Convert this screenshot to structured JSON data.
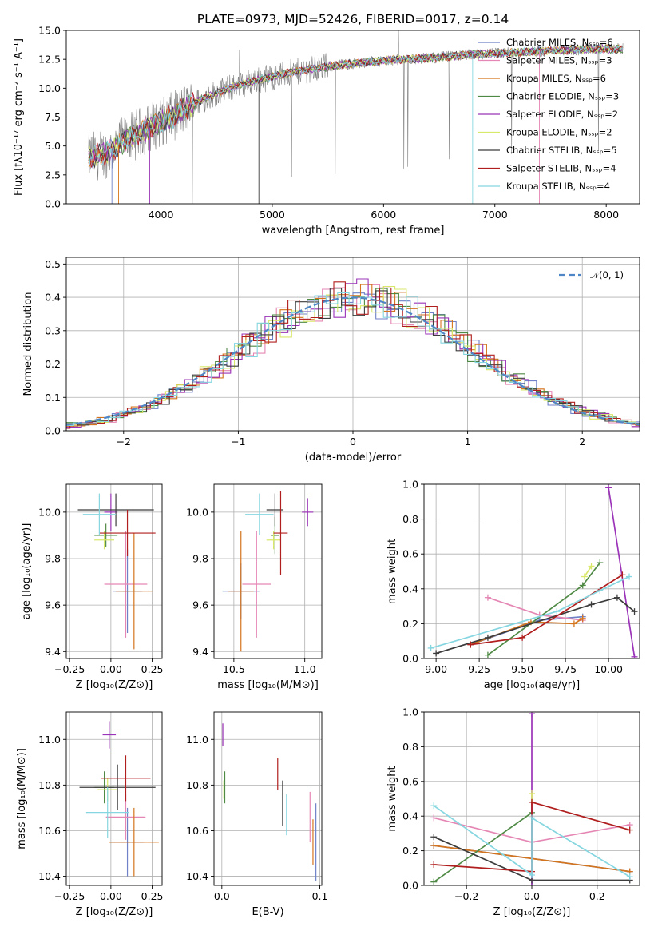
{
  "title": "PLATE=0973, MJD=52426, FIBERID=0017, z=0.14",
  "colors": {
    "series": [
      "#6f82c8",
      "#e587b4",
      "#d4741c",
      "#4f8a45",
      "#9b34b8",
      "#d9e86b",
      "#3c3c3c",
      "#b01e1e",
      "#85d6e0"
    ],
    "spectrum": "#808080",
    "gaussian": "#4f86c6",
    "grid": "#b0b0b0"
  },
  "chart_data": [
    {
      "name": "spectrum",
      "type": "line",
      "xlabel": "wavelength [Angstrom, rest frame]",
      "ylabel": "Flux [fλ10⁻¹⁷ erg cm⁻² s⁻¹ A⁻¹]",
      "xlim": [
        3150,
        8300
      ],
      "ylim": [
        0,
        15
      ],
      "xticks": [
        "4000",
        "5000",
        "6000",
        "7000",
        "8000"
      ],
      "yticks": [
        "0.0",
        "2.5",
        "5.0",
        "7.5",
        "10.0",
        "12.5",
        "15.0"
      ],
      "grid": false,
      "legend_position": "top-right",
      "series": [
        {
          "name": "Chabrier MILES, Nₛₛₚ=6"
        },
        {
          "name": "Salpeter MILES, Nₛₛₚ=3"
        },
        {
          "name": "Kroupa MILES, Nₛₛₚ=6"
        },
        {
          "name": "Chabrier ELODIE, Nₛₛₚ=3"
        },
        {
          "name": "Salpeter ELODIE, Nₛₛₚ=2"
        },
        {
          "name": "Kroupa ELODIE, Nₛₛₚ=2"
        },
        {
          "name": "Chabrier STELIB, Nₛₛₚ=5"
        },
        {
          "name": "Salpeter STELIB, Nₛₛₚ=4"
        },
        {
          "name": "Kroupa STELIB, Nₛₛₚ=4"
        }
      ],
      "continuum": [
        [
          3350,
          4.1
        ],
        [
          3500,
          4.3
        ],
        [
          3700,
          5.6
        ],
        [
          3900,
          6.6
        ],
        [
          4100,
          7.5
        ],
        [
          4300,
          8.7
        ],
        [
          4500,
          9.6
        ],
        [
          4700,
          10.3
        ],
        [
          5000,
          11.0
        ],
        [
          5300,
          11.6
        ],
        [
          5600,
          12.0
        ],
        [
          6000,
          12.4
        ],
        [
          6400,
          12.6
        ],
        [
          6800,
          12.9
        ],
        [
          7200,
          13.1
        ],
        [
          7600,
          13.3
        ],
        [
          8000,
          13.4
        ],
        [
          8150,
          13.4
        ]
      ]
    },
    {
      "name": "residuals",
      "type": "line",
      "xlabel": "(data-model)/error",
      "ylabel": "Normed distribution",
      "xlim": [
        -2.5,
        2.5
      ],
      "ylim": [
        0,
        0.52
      ],
      "xticks": [
        "−2",
        "−1",
        "0",
        "1",
        "2"
      ],
      "yticks": [
        "0.0",
        "0.1",
        "0.2",
        "0.3",
        "0.4",
        "0.5"
      ],
      "grid": true,
      "legend": "𝒩(0, 1)",
      "legend_position": "top-right",
      "gaussian": {
        "mean": 0,
        "sigma": 1
      }
    },
    {
      "name": "Z vs age",
      "type": "scatter",
      "xlabel": "Z [log₁₀(Z/Z⊙)]",
      "ylabel": "age  [log₁₀(age/yr)]",
      "xlim": [
        -0.27,
        0.31
      ],
      "ylim": [
        9.37,
        10.12
      ],
      "xticks": [
        "−0.25",
        "0.00",
        "0.25"
      ],
      "yticks": [
        "9.4",
        "9.6",
        "9.8",
        "10.0"
      ],
      "grid": true,
      "points": [
        {
          "s": 0,
          "x": 0.1,
          "y": 9.66,
          "ex": 0.09,
          "ey": 0.18
        },
        {
          "s": 1,
          "x": 0.09,
          "y": 9.69,
          "ex": 0.13,
          "ey": 0.23
        },
        {
          "s": 2,
          "x": 0.14,
          "y": 9.66,
          "ex": 0.11,
          "ey": 0.25
        },
        {
          "s": 3,
          "x": -0.03,
          "y": 9.9,
          "ex": 0.07,
          "ey": 0.05
        },
        {
          "s": 4,
          "x": 0.0,
          "y": 10.0,
          "ex": 0.04,
          "ey": 0.08
        },
        {
          "s": 5,
          "x": -0.04,
          "y": 9.88,
          "ex": 0.06,
          "ey": 0.04
        },
        {
          "s": 6,
          "x": 0.03,
          "y": 10.01,
          "ex": 0.23,
          "ey": 0.07
        },
        {
          "s": 7,
          "x": 0.1,
          "y": 9.91,
          "ex": 0.17,
          "ey": 0.1
        },
        {
          "s": 8,
          "x": -0.07,
          "y": 9.99,
          "ex": 0.1,
          "ey": 0.09
        }
      ]
    },
    {
      "name": "mass vs age",
      "type": "scatter",
      "xlabel": "mass [log₁₀(M/M⊙)]",
      "ylabel": "",
      "xlim": [
        10.36,
        11.12
      ],
      "ylim": [
        9.37,
        10.12
      ],
      "xticks": [
        "10.5",
        "11.0"
      ],
      "yticks": [
        "9.4",
        "9.6",
        "9.8",
        "10.0"
      ],
      "grid": true,
      "points": [
        {
          "s": 0,
          "x": 10.55,
          "y": 9.66,
          "ex": 0.13,
          "ey": 0.12
        },
        {
          "s": 1,
          "x": 10.66,
          "y": 9.69,
          "ex": 0.1,
          "ey": 0.23
        },
        {
          "s": 2,
          "x": 10.55,
          "y": 9.66,
          "ex": 0.09,
          "ey": 0.26
        },
        {
          "s": 3,
          "x": 10.79,
          "y": 9.9,
          "ex": 0.03,
          "ey": 0.08
        },
        {
          "s": 4,
          "x": 11.02,
          "y": 10.0,
          "ex": 0.04,
          "ey": 0.06
        },
        {
          "s": 5,
          "x": 10.78,
          "y": 9.88,
          "ex": 0.05,
          "ey": 0.04
        },
        {
          "s": 6,
          "x": 10.79,
          "y": 10.01,
          "ex": 0.06,
          "ey": 0.07
        },
        {
          "s": 7,
          "x": 10.83,
          "y": 9.91,
          "ex": 0.05,
          "ey": 0.18
        },
        {
          "s": 8,
          "x": 10.68,
          "y": 9.99,
          "ex": 0.1,
          "ey": 0.09
        }
      ]
    },
    {
      "name": "age vs mass weight",
      "type": "line",
      "xlabel": "age  [log₁₀(age/yr)]",
      "ylabel": "mass weight",
      "xlim": [
        8.93,
        10.18
      ],
      "ylim": [
        0,
        1.0
      ],
      "xticks": [
        "9.00",
        "9.25",
        "9.50",
        "9.75",
        "10.00"
      ],
      "yticks": [
        "0.0",
        "0.2",
        "0.4",
        "0.6",
        "0.8",
        "1.0"
      ],
      "grid": true,
      "series": [
        {
          "s": 0,
          "x": [
            9.2,
            9.6,
            9.85
          ],
          "y": [
            0.08,
            0.22,
            0.24
          ]
        },
        {
          "s": 1,
          "x": [
            9.3,
            9.6,
            9.85
          ],
          "y": [
            0.35,
            0.25,
            0.22
          ]
        },
        {
          "s": 2,
          "x": [
            9.2,
            9.55,
            9.8,
            9.85
          ],
          "y": [
            0.08,
            0.21,
            0.2,
            0.23
          ]
        },
        {
          "s": 3,
          "x": [
            9.3,
            9.85,
            9.95
          ],
          "y": [
            0.02,
            0.42,
            0.55
          ]
        },
        {
          "s": 4,
          "x": [
            10.0,
            10.15
          ],
          "y": [
            0.98,
            0.01
          ]
        },
        {
          "s": 5,
          "x": [
            9.86,
            9.9
          ],
          "y": [
            0.47,
            0.53
          ]
        },
        {
          "s": 6,
          "x": [
            9.0,
            9.3,
            9.9,
            10.05,
            10.15
          ],
          "y": [
            0.03,
            0.12,
            0.31,
            0.35,
            0.27
          ]
        },
        {
          "s": 7,
          "x": [
            9.2,
            9.5,
            10.08
          ],
          "y": [
            0.08,
            0.12,
            0.48
          ]
        },
        {
          "s": 8,
          "x": [
            8.97,
            9.7,
            9.95,
            10.12
          ],
          "y": [
            0.06,
            0.27,
            0.39,
            0.47
          ]
        }
      ]
    },
    {
      "name": "Z vs mass",
      "type": "scatter",
      "xlabel": "Z [log₁₀(Z/Z⊙)]",
      "ylabel": "mass [log₁₀(M/M⊙)]",
      "xlim": [
        -0.27,
        0.31
      ],
      "ylim": [
        10.36,
        11.12
      ],
      "xticks": [
        "−0.25",
        "0.00",
        "0.25"
      ],
      "yticks": [
        "10.4",
        "10.6",
        "10.8",
        "11.0"
      ],
      "grid": true,
      "points": [
        {
          "s": 0,
          "x": 0.1,
          "y": 10.55,
          "ex": 0.1,
          "ey": 0.15
        },
        {
          "s": 1,
          "x": 0.09,
          "y": 10.66,
          "ex": 0.12,
          "ey": 0.1
        },
        {
          "s": 2,
          "x": 0.14,
          "y": 10.55,
          "ex": 0.15,
          "ey": 0.15
        },
        {
          "s": 3,
          "x": -0.04,
          "y": 10.79,
          "ex": 0.06,
          "ey": 0.07
        },
        {
          "s": 4,
          "x": -0.01,
          "y": 11.02,
          "ex": 0.04,
          "ey": 0.06
        },
        {
          "s": 5,
          "x": -0.02,
          "y": 10.78,
          "ex": 0.06,
          "ey": 0.05
        },
        {
          "s": 6,
          "x": 0.04,
          "y": 10.79,
          "ex": 0.23,
          "ey": 0.1
        },
        {
          "s": 7,
          "x": 0.09,
          "y": 10.83,
          "ex": 0.15,
          "ey": 0.1
        },
        {
          "s": 8,
          "x": -0.02,
          "y": 10.68,
          "ex": 0.13,
          "ey": 0.11
        }
      ]
    },
    {
      "name": "E(B-V) vs mass",
      "type": "scatter",
      "xlabel": "E(B-V)",
      "ylabel": "",
      "xlim": [
        -0.008,
        0.102
      ],
      "ylim": [
        10.36,
        11.12
      ],
      "xticks": [
        "0.0",
        "0.1"
      ],
      "yticks": [
        "10.4",
        "10.6",
        "10.8",
        "11.0"
      ],
      "grid": true,
      "points": [
        {
          "s": 0,
          "x": 0.096,
          "y": 10.55,
          "ey": 0.17
        },
        {
          "s": 1,
          "x": 0.09,
          "y": 10.66,
          "ey": 0.11
        },
        {
          "s": 2,
          "x": 0.093,
          "y": 10.55,
          "ey": 0.1
        },
        {
          "s": 3,
          "x": 0.003,
          "y": 10.79,
          "ey": 0.07
        },
        {
          "s": 4,
          "x": 0.001,
          "y": 11.02,
          "ey": 0.05
        },
        {
          "s": 5,
          "x": 0.002,
          "y": 10.78,
          "ey": 0.04
        },
        {
          "s": 6,
          "x": 0.062,
          "y": 10.72,
          "ey": 0.1
        },
        {
          "s": 7,
          "x": 0.057,
          "y": 10.85,
          "ey": 0.07
        },
        {
          "s": 8,
          "x": 0.066,
          "y": 10.67,
          "ey": 0.09
        }
      ]
    },
    {
      "name": "Z vs mass weight",
      "type": "line",
      "xlabel": "Z [log₁₀(Z/Z⊙)]",
      "ylabel": "mass weight",
      "xlim": [
        -0.33,
        0.33
      ],
      "ylim": [
        0,
        1.0
      ],
      "xticks": [
        "−0.2",
        "0.0",
        "0.2"
      ],
      "yticks": [
        "0.0",
        "0.2",
        "0.4",
        "0.6",
        "0.8",
        "1.0"
      ],
      "grid": true,
      "series": [
        {
          "s": 0,
          "x": [
            -0.3,
            0.3
          ],
          "y": [
            0.23,
            0.08
          ]
        },
        {
          "s": 1,
          "x": [
            -0.3,
            0.0,
            0.3
          ],
          "y": [
            0.39,
            0.25,
            0.35
          ]
        },
        {
          "s": 2,
          "x": [
            -0.3,
            0.3
          ],
          "y": [
            0.23,
            0.08
          ]
        },
        {
          "s": 3,
          "x": [
            -0.3,
            0.0
          ],
          "y": [
            0.02,
            0.42
          ]
        },
        {
          "s": 4,
          "x": [
            0.0,
            0.0
          ],
          "y": [
            0.0,
            0.99
          ]
        },
        {
          "s": 5,
          "x": [
            0.0,
            0.0
          ],
          "y": [
            0.48,
            0.53
          ]
        },
        {
          "s": 6,
          "x": [
            -0.3,
            0.0,
            0.3
          ],
          "y": [
            0.28,
            0.03,
            0.03
          ]
        },
        {
          "s": 7,
          "x": [
            -0.3,
            0.0,
            0.0,
            0.3
          ],
          "y": [
            0.12,
            0.08,
            0.48,
            0.32
          ]
        },
        {
          "s": 8,
          "x": [
            -0.3,
            0.0,
            0.0,
            0.3
          ],
          "y": [
            0.46,
            0.06,
            0.39,
            0.05
          ]
        }
      ]
    }
  ]
}
